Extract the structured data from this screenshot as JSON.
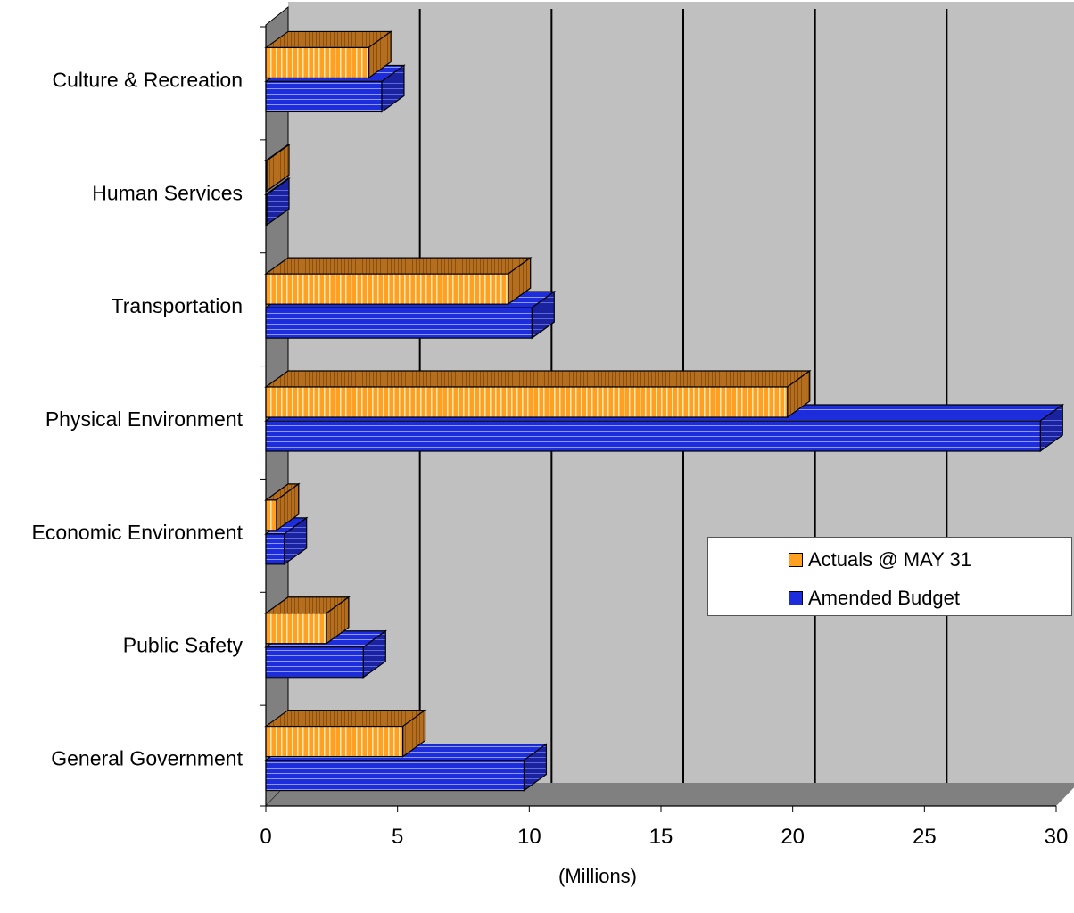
{
  "chart_data": {
    "type": "bar",
    "orientation": "horizontal",
    "three_d": true,
    "categories": [
      "Culture & Recreation",
      "Human Services",
      "Transportation",
      "Physical Environment",
      "Economic Environment",
      "Public Safety",
      "General Government"
    ],
    "series": [
      {
        "name": "Actuals @ MAY 31",
        "values": [
          3.9,
          0.0,
          9.2,
          19.8,
          0.4,
          2.3,
          5.2
        ],
        "color": "#FFA022"
      },
      {
        "name": "Amended Budget",
        "values": [
          4.4,
          0.0,
          10.1,
          29.4,
          0.7,
          3.7,
          9.8
        ],
        "color": "#1E2DDC"
      }
    ],
    "xlabel": "(Millions)",
    "xlim": [
      0,
      30
    ],
    "xticks": [
      "0",
      "5",
      "10",
      "15",
      "20",
      "25",
      "30"
    ],
    "grid": true,
    "legend_position": "right"
  }
}
